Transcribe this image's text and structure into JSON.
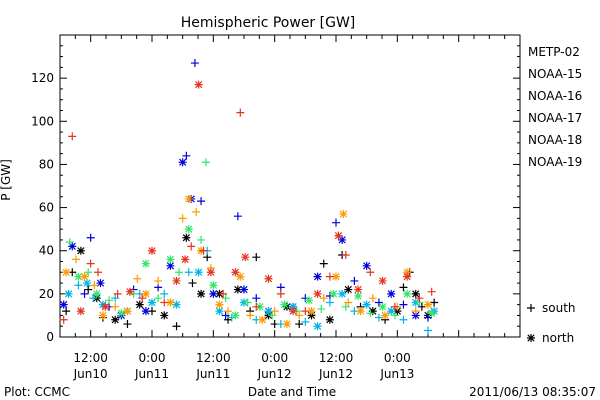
{
  "chart_data": {
    "type": "scatter",
    "title": "Hemispheric Power [GW]",
    "ylabel": "P [GW]",
    "xlabel": "Date and Time",
    "ylim": [
      0,
      140
    ],
    "xlim": [
      0.25,
      4.0
    ],
    "x_unit": "days since 2011-06-10 00:00 UT",
    "y_ticks": [
      0,
      20,
      40,
      60,
      80,
      100,
      120
    ],
    "x_ticks": [
      {
        "x": 0.5,
        "time": "12:00",
        "date": "Jun10"
      },
      {
        "x": 1.0,
        "time": "0:00",
        "date": "Jun11"
      },
      {
        "x": 1.5,
        "time": "12:00",
        "date": "Jun11"
      },
      {
        "x": 2.0,
        "time": "0:00",
        "date": "Jun12"
      },
      {
        "x": 2.5,
        "time": "12:00",
        "date": "Jun12"
      },
      {
        "x": 3.0,
        "time": "0:00",
        "date": "Jun13"
      }
    ],
    "grid": false,
    "legend_position": "right",
    "marker_legend": [
      {
        "symbol": "+",
        "label": "south"
      },
      {
        "symbol": "*",
        "label": "north"
      }
    ],
    "series": [
      {
        "name": "METP-02",
        "color": "#000000",
        "points": [
          [
            0.3,
            12,
            "+"
          ],
          [
            0.35,
            30,
            "+"
          ],
          [
            0.42,
            40,
            "*"
          ],
          [
            0.48,
            22,
            "+"
          ],
          [
            0.55,
            18,
            "*"
          ],
          [
            0.6,
            9,
            "+"
          ],
          [
            0.7,
            8,
            "*"
          ],
          [
            0.8,
            6,
            "+"
          ],
          [
            0.9,
            15,
            "*"
          ],
          [
            1.0,
            12,
            "+"
          ],
          [
            1.1,
            10,
            "*"
          ],
          [
            1.2,
            5,
            "+"
          ],
          [
            1.28,
            46,
            "*"
          ],
          [
            1.33,
            25,
            "+"
          ],
          [
            1.4,
            20,
            "*"
          ],
          [
            1.45,
            37,
            "+"
          ],
          [
            1.55,
            20,
            "*"
          ],
          [
            1.62,
            8,
            "+"
          ],
          [
            1.7,
            22,
            "*"
          ],
          [
            1.8,
            12,
            "+"
          ],
          [
            1.85,
            37,
            "+"
          ],
          [
            1.95,
            10,
            "*"
          ],
          [
            2.0,
            6,
            "+"
          ],
          [
            2.1,
            14,
            "*"
          ],
          [
            2.2,
            6,
            "+"
          ],
          [
            2.3,
            10,
            "*"
          ],
          [
            2.4,
            34,
            "+"
          ],
          [
            2.45,
            8,
            "*"
          ],
          [
            2.55,
            38,
            "+"
          ],
          [
            2.6,
            22,
            "*"
          ],
          [
            2.7,
            14,
            "+"
          ],
          [
            2.8,
            12,
            "*"
          ],
          [
            2.9,
            8,
            "+"
          ],
          [
            3.0,
            12,
            "*"
          ],
          [
            3.05,
            23,
            "+"
          ],
          [
            3.1,
            30,
            "+"
          ],
          [
            3.15,
            20,
            "*"
          ],
          [
            3.2,
            14,
            "+"
          ],
          [
            3.25,
            10,
            "*"
          ],
          [
            3.3,
            16,
            "+"
          ]
        ]
      },
      {
        "name": "NOAA-15",
        "color": "#0000dd",
        "points": [
          [
            0.28,
            15,
            "*"
          ],
          [
            0.35,
            42,
            "*"
          ],
          [
            0.45,
            20,
            "+"
          ],
          [
            0.5,
            46,
            "+"
          ],
          [
            0.58,
            25,
            "*"
          ],
          [
            0.65,
            14,
            "+"
          ],
          [
            0.75,
            10,
            "*"
          ],
          [
            0.85,
            22,
            "+"
          ],
          [
            0.95,
            12,
            "*"
          ],
          [
            1.05,
            23,
            "+"
          ],
          [
            1.15,
            33,
            "*"
          ],
          [
            1.25,
            81,
            "*"
          ],
          [
            1.28,
            84,
            "+"
          ],
          [
            1.32,
            64,
            "*"
          ],
          [
            1.35,
            127,
            "+"
          ],
          [
            1.4,
            63,
            "+"
          ],
          [
            1.5,
            20,
            "*"
          ],
          [
            1.6,
            10,
            "+"
          ],
          [
            1.7,
            56,
            "+"
          ],
          [
            1.75,
            22,
            "*"
          ],
          [
            1.85,
            18,
            "+"
          ],
          [
            1.95,
            12,
            "*"
          ],
          [
            2.05,
            23,
            "+"
          ],
          [
            2.15,
            14,
            "*"
          ],
          [
            2.25,
            18,
            "+"
          ],
          [
            2.35,
            28,
            "*"
          ],
          [
            2.45,
            19,
            "+"
          ],
          [
            2.5,
            53,
            "+"
          ],
          [
            2.55,
            45,
            "*"
          ],
          [
            2.65,
            26,
            "+"
          ],
          [
            2.75,
            33,
            "*"
          ],
          [
            2.85,
            16,
            "+"
          ],
          [
            2.95,
            20,
            "*"
          ],
          [
            3.05,
            15,
            "+"
          ],
          [
            3.15,
            10,
            "*"
          ],
          [
            3.25,
            9,
            "+"
          ]
        ]
      },
      {
        "name": "NOAA-16",
        "color": "#00b4e6",
        "points": [
          [
            0.32,
            20,
            "*"
          ],
          [
            0.4,
            24,
            "+"
          ],
          [
            0.47,
            25,
            "*"
          ],
          [
            0.52,
            18,
            "+"
          ],
          [
            0.6,
            15,
            "*"
          ],
          [
            0.7,
            18,
            "+"
          ],
          [
            0.8,
            12,
            "*"
          ],
          [
            0.9,
            20,
            "+"
          ],
          [
            1.0,
            16,
            "*"
          ],
          [
            1.1,
            20,
            "+"
          ],
          [
            1.2,
            15,
            "*"
          ],
          [
            1.3,
            30,
            "+"
          ],
          [
            1.38,
            30,
            "*"
          ],
          [
            1.45,
            40,
            "+"
          ],
          [
            1.55,
            12,
            "*"
          ],
          [
            1.65,
            9,
            "+"
          ],
          [
            1.75,
            16,
            "*"
          ],
          [
            1.85,
            8,
            "+"
          ],
          [
            1.95,
            12,
            "*"
          ],
          [
            2.05,
            6,
            "+"
          ],
          [
            2.15,
            14,
            "*"
          ],
          [
            2.25,
            7,
            "+"
          ],
          [
            2.35,
            5,
            "*"
          ],
          [
            2.45,
            16,
            "+"
          ],
          [
            2.55,
            20,
            "*"
          ],
          [
            2.65,
            12,
            "+"
          ],
          [
            2.75,
            15,
            "*"
          ],
          [
            2.85,
            9,
            "+"
          ],
          [
            2.95,
            12,
            "*"
          ],
          [
            3.05,
            8,
            "+"
          ],
          [
            3.15,
            16,
            "*"
          ],
          [
            3.25,
            3,
            "+"
          ],
          [
            3.3,
            12,
            "*"
          ]
        ]
      },
      {
        "name": "NOAA-17",
        "color": "#33e666",
        "points": [
          [
            0.33,
            44,
            "+"
          ],
          [
            0.4,
            28,
            "*"
          ],
          [
            0.48,
            30,
            "+"
          ],
          [
            0.55,
            20,
            "*"
          ],
          [
            0.65,
            17,
            "+"
          ],
          [
            0.75,
            11,
            "*"
          ],
          [
            0.85,
            20,
            "+"
          ],
          [
            0.95,
            34,
            "*"
          ],
          [
            1.05,
            18,
            "+"
          ],
          [
            1.15,
            36,
            "*"
          ],
          [
            1.22,
            30,
            "+"
          ],
          [
            1.3,
            50,
            "*"
          ],
          [
            1.4,
            45,
            "+"
          ],
          [
            1.44,
            81,
            "+"
          ],
          [
            1.5,
            24,
            "*"
          ],
          [
            1.6,
            18,
            "+"
          ],
          [
            1.68,
            10,
            "*"
          ],
          [
            1.78,
            16,
            "+"
          ],
          [
            1.88,
            14,
            "*"
          ],
          [
            1.98,
            10,
            "+"
          ],
          [
            2.08,
            15,
            "*"
          ],
          [
            2.18,
            12,
            "+"
          ],
          [
            2.28,
            17,
            "*"
          ],
          [
            2.38,
            13,
            "+"
          ],
          [
            2.48,
            20,
            "*"
          ],
          [
            2.58,
            14,
            "+"
          ],
          [
            2.68,
            19,
            "*"
          ],
          [
            2.78,
            11,
            "+"
          ],
          [
            2.88,
            14,
            "*"
          ],
          [
            2.98,
            10,
            "+"
          ],
          [
            3.08,
            20,
            "*"
          ],
          [
            3.18,
            16,
            "+"
          ],
          [
            3.28,
            11,
            "*"
          ]
        ]
      },
      {
        "name": "NOAA-18",
        "color": "#ff9900",
        "points": [
          [
            0.3,
            30,
            "*"
          ],
          [
            0.38,
            36,
            "+"
          ],
          [
            0.45,
            28,
            "*"
          ],
          [
            0.53,
            24,
            "+"
          ],
          [
            0.6,
            10,
            "*"
          ],
          [
            0.7,
            14,
            "+"
          ],
          [
            0.8,
            12,
            "*"
          ],
          [
            0.88,
            27,
            "+"
          ],
          [
            0.95,
            20,
            "*"
          ],
          [
            1.05,
            26,
            "+"
          ],
          [
            1.15,
            16,
            "*"
          ],
          [
            1.25,
            55,
            "+"
          ],
          [
            1.3,
            64,
            "*"
          ],
          [
            1.36,
            58,
            "+"
          ],
          [
            1.4,
            40,
            "*"
          ],
          [
            1.48,
            32,
            "+"
          ],
          [
            1.55,
            15,
            "*"
          ],
          [
            1.62,
            12,
            "+"
          ],
          [
            1.72,
            28,
            "*"
          ],
          [
            1.8,
            10,
            "+"
          ],
          [
            1.9,
            8,
            "*"
          ],
          [
            2.0,
            12,
            "+"
          ],
          [
            2.1,
            6,
            "*"
          ],
          [
            2.2,
            10,
            "+"
          ],
          [
            2.3,
            12,
            "*"
          ],
          [
            2.4,
            18,
            "+"
          ],
          [
            2.5,
            28,
            "*"
          ],
          [
            2.56,
            57,
            "*"
          ],
          [
            2.6,
            16,
            "+"
          ],
          [
            2.7,
            12,
            "*"
          ],
          [
            2.8,
            18,
            "+"
          ],
          [
            2.9,
            10,
            "*"
          ],
          [
            3.0,
            14,
            "+"
          ],
          [
            3.08,
            30,
            "*"
          ],
          [
            3.15,
            12,
            "+"
          ],
          [
            3.25,
            15,
            "*"
          ]
        ]
      },
      {
        "name": "NOAA-19",
        "color": "#e63320",
        "points": [
          [
            0.28,
            8,
            "+"
          ],
          [
            0.35,
            93,
            "+"
          ],
          [
            0.42,
            12,
            "*"
          ],
          [
            0.5,
            34,
            "+"
          ],
          [
            0.56,
            30,
            "+"
          ],
          [
            0.62,
            14,
            "*"
          ],
          [
            0.72,
            20,
            "+"
          ],
          [
            0.82,
            21,
            "*"
          ],
          [
            0.92,
            18,
            "+"
          ],
          [
            1.0,
            40,
            "*"
          ],
          [
            1.1,
            16,
            "+"
          ],
          [
            1.2,
            26,
            "*"
          ],
          [
            1.27,
            36,
            "*"
          ],
          [
            1.32,
            42,
            "+"
          ],
          [
            1.38,
            117,
            "*"
          ],
          [
            1.42,
            40,
            "+"
          ],
          [
            1.48,
            30,
            "*"
          ],
          [
            1.58,
            20,
            "+"
          ],
          [
            1.68,
            30,
            "*"
          ],
          [
            1.72,
            104,
            "+"
          ],
          [
            1.76,
            37,
            "*"
          ],
          [
            1.85,
            14,
            "+"
          ],
          [
            1.95,
            27,
            "*"
          ],
          [
            2.05,
            20,
            "+"
          ],
          [
            2.15,
            12,
            "*"
          ],
          [
            2.25,
            12,
            "+"
          ],
          [
            2.35,
            20,
            "*"
          ],
          [
            2.45,
            28,
            "+"
          ],
          [
            2.52,
            47,
            "*"
          ],
          [
            2.58,
            38,
            "+"
          ],
          [
            2.68,
            22,
            "*"
          ],
          [
            2.78,
            30,
            "+"
          ],
          [
            2.88,
            26,
            "*"
          ],
          [
            2.98,
            14,
            "+"
          ],
          [
            3.08,
            28,
            "*"
          ],
          [
            3.18,
            18,
            "+"
          ],
          [
            3.28,
            21,
            "+"
          ]
        ]
      }
    ]
  },
  "footer": {
    "plot_credit": "Plot: CCMC",
    "timestamp": "2011/06/13 08:35:07"
  }
}
